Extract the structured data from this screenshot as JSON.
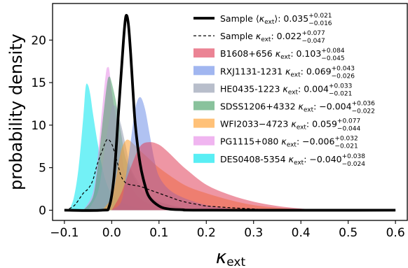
{
  "chart_data": {
    "type": "area",
    "xlabel_main": "κ",
    "xlabel_sub": "ext",
    "ylabel": "probability density",
    "xlim": [
      -0.125,
      0.625
    ],
    "ylim": [
      -1.2,
      24.3
    ],
    "x_ticks": [
      -0.1,
      0.0,
      0.1,
      0.2,
      0.3,
      0.4,
      0.5,
      0.6
    ],
    "x_tick_labels": [
      "−0.1",
      "0.0",
      "0.1",
      "0.2",
      "0.3",
      "0.4",
      "0.5",
      "0.6"
    ],
    "y_ticks": [
      0,
      5,
      10,
      15,
      20
    ],
    "y_tick_labels": [
      "0",
      "5",
      "10",
      "15",
      "20"
    ],
    "grid": false,
    "legend_position": "top-right",
    "series": [
      {
        "name": "DES0408-5354",
        "legend_prefix": "DES0408-5354 ",
        "legend_value": "−0.040",
        "legend_plus": "+0.038",
        "legend_minus": "−0.024",
        "style": "filled",
        "color": "#00e5ee",
        "opacity": 0.55,
        "points": [
          [
            -0.09,
            0
          ],
          [
            -0.08,
            1.5
          ],
          [
            -0.07,
            5
          ],
          [
            -0.06,
            11
          ],
          [
            -0.055,
            14.5
          ],
          [
            -0.05,
            14.7
          ],
          [
            -0.045,
            13.5
          ],
          [
            -0.04,
            11.5
          ],
          [
            -0.03,
            8
          ],
          [
            -0.02,
            5
          ],
          [
            -0.01,
            3
          ],
          [
            0.0,
            2
          ],
          [
            0.02,
            1
          ],
          [
            0.04,
            0.5
          ],
          [
            0.06,
            0.2
          ],
          [
            0.08,
            0
          ]
        ]
      },
      {
        "name": "PG1115+080",
        "legend_prefix": "PG1115+080 ",
        "legend_value": "−0.006",
        "legend_plus": "+0.032",
        "legend_minus": "−0.021",
        "style": "filled",
        "color": "#e88ee8",
        "opacity": 0.55,
        "points": [
          [
            -0.06,
            0
          ],
          [
            -0.04,
            2
          ],
          [
            -0.03,
            6
          ],
          [
            -0.02,
            12
          ],
          [
            -0.012,
            16.2
          ],
          [
            -0.008,
            16.8
          ],
          [
            -0.005,
            16.5
          ],
          [
            0.0,
            14
          ],
          [
            0.01,
            10.5
          ],
          [
            0.02,
            7
          ],
          [
            0.03,
            4
          ],
          [
            0.05,
            2
          ],
          [
            0.07,
            1
          ],
          [
            0.1,
            0.4
          ],
          [
            0.13,
            0.1
          ],
          [
            0.15,
            0
          ]
        ]
      },
      {
        "name": "SDSS1206+4332",
        "legend_prefix": "SDSS1206+4332 ",
        "legend_value": "−0.004",
        "legend_plus": "+0.036",
        "legend_minus": "−0.022",
        "style": "filled",
        "color": "#3a9a5a",
        "opacity": 0.5,
        "points": [
          [
            -0.06,
            0
          ],
          [
            -0.04,
            1.5
          ],
          [
            -0.03,
            5
          ],
          [
            -0.02,
            10
          ],
          [
            -0.01,
            14.8
          ],
          [
            -0.005,
            15.7
          ],
          [
            0.0,
            15
          ],
          [
            0.01,
            12.5
          ],
          [
            0.02,
            9
          ],
          [
            0.03,
            6
          ],
          [
            0.05,
            3.5
          ],
          [
            0.07,
            2
          ],
          [
            0.1,
            1
          ],
          [
            0.14,
            0.4
          ],
          [
            0.18,
            0.1
          ],
          [
            0.2,
            0
          ]
        ]
      },
      {
        "name": "HE0435-1223",
        "legend_prefix": "HE0435-1223 ",
        "legend_value": "0.004",
        "legend_plus": "+0.033",
        "legend_minus": "−0.021",
        "style": "filled",
        "color": "#9aa3b5",
        "opacity": 0.6,
        "points": [
          [
            -0.05,
            0
          ],
          [
            -0.03,
            2
          ],
          [
            -0.02,
            5
          ],
          [
            -0.01,
            9
          ],
          [
            0.0,
            12
          ],
          [
            0.005,
            12.3
          ],
          [
            0.01,
            12
          ],
          [
            0.02,
            10
          ],
          [
            0.03,
            7.5
          ],
          [
            0.04,
            5
          ],
          [
            0.06,
            3
          ],
          [
            0.08,
            1.8
          ],
          [
            0.1,
            1
          ],
          [
            0.14,
            0.4
          ],
          [
            0.18,
            0.1
          ],
          [
            0.2,
            0
          ]
        ]
      },
      {
        "name": "WFI2033−4723",
        "legend_prefix": "WFI2033−4723 ",
        "legend_value": "0.059",
        "legend_plus": "+0.077",
        "legend_minus": "−0.044",
        "style": "filled",
        "color": "#ffa030",
        "opacity": 0.55,
        "points": [
          [
            -0.02,
            0
          ],
          [
            0.0,
            1.5
          ],
          [
            0.01,
            4
          ],
          [
            0.02,
            7
          ],
          [
            0.03,
            8.2
          ],
          [
            0.04,
            8.1
          ],
          [
            0.06,
            7
          ],
          [
            0.08,
            6
          ],
          [
            0.1,
            5
          ],
          [
            0.13,
            3.8
          ],
          [
            0.16,
            2.8
          ],
          [
            0.2,
            2
          ],
          [
            0.25,
            1.2
          ],
          [
            0.3,
            0.6
          ],
          [
            0.35,
            0.3
          ],
          [
            0.4,
            0.1
          ],
          [
            0.45,
            0
          ]
        ]
      },
      {
        "name": "RXJ1131-1231",
        "legend_prefix": "RXJ1131-1231 ",
        "legend_value": "0.069",
        "legend_plus": "+0.043",
        "legend_minus": "−0.026",
        "style": "filled",
        "color": "#6f8fe8",
        "opacity": 0.55,
        "points": [
          [
            0.0,
            0
          ],
          [
            0.02,
            1
          ],
          [
            0.03,
            4
          ],
          [
            0.04,
            8
          ],
          [
            0.05,
            12
          ],
          [
            0.06,
            13.3
          ],
          [
            0.07,
            12
          ],
          [
            0.08,
            9
          ],
          [
            0.09,
            6
          ],
          [
            0.1,
            4
          ],
          [
            0.12,
            2.5
          ],
          [
            0.15,
            1.5
          ],
          [
            0.2,
            0.6
          ],
          [
            0.25,
            0.2
          ],
          [
            0.3,
            0
          ]
        ]
      },
      {
        "name": "B1608+656",
        "legend_prefix": "B1608+656 ",
        "legend_value": "0.103",
        "legend_plus": "+0.084",
        "legend_minus": "−0.045",
        "style": "filled",
        "color": "#e0405a",
        "opacity": 0.55,
        "points": [
          [
            0.0,
            0
          ],
          [
            0.02,
            2
          ],
          [
            0.04,
            5
          ],
          [
            0.06,
            7.5
          ],
          [
            0.08,
            8
          ],
          [
            0.1,
            7.7
          ],
          [
            0.12,
            6.8
          ],
          [
            0.14,
            5.7
          ],
          [
            0.16,
            4.7
          ],
          [
            0.2,
            3
          ],
          [
            0.25,
            1.8
          ],
          [
            0.3,
            1
          ],
          [
            0.35,
            0.5
          ],
          [
            0.4,
            0.2
          ],
          [
            0.45,
            0
          ]
        ]
      },
      {
        "name": "Sample κext (dashed)",
        "legend_prefix": "Sample ",
        "legend_value": "0.022",
        "legend_plus": "+0.077",
        "legend_minus": "−0.047",
        "style": "dashed",
        "color": "#000000",
        "points": [
          [
            -0.1,
            0
          ],
          [
            -0.08,
            0.5
          ],
          [
            -0.06,
            2
          ],
          [
            -0.05,
            2.5
          ],
          [
            -0.04,
            3.5
          ],
          [
            -0.03,
            5.5
          ],
          [
            -0.02,
            7
          ],
          [
            -0.01,
            8.3
          ],
          [
            0.0,
            7.8
          ],
          [
            0.01,
            6
          ],
          [
            0.02,
            4
          ],
          [
            0.03,
            3.2
          ],
          [
            0.04,
            3
          ],
          [
            0.06,
            2.8
          ],
          [
            0.08,
            2.4
          ],
          [
            0.1,
            2
          ],
          [
            0.12,
            1.6
          ],
          [
            0.14,
            1.2
          ],
          [
            0.16,
            0.9
          ],
          [
            0.18,
            0.7
          ],
          [
            0.2,
            0.5
          ],
          [
            0.25,
            0.3
          ],
          [
            0.3,
            0.15
          ],
          [
            0.35,
            0.05
          ],
          [
            0.6,
            0
          ]
        ]
      },
      {
        "name": "Sample ⟨κext⟩ (thick)",
        "legend_prefix": "Sample ",
        "legend_value": "0.035",
        "legend_plus": "+0.021",
        "legend_minus": "−0.016",
        "style": "thick",
        "color": "#000000",
        "points": [
          [
            -0.1,
            0
          ],
          [
            -0.02,
            0
          ],
          [
            -0.005,
            0.5
          ],
          [
            0.005,
            4
          ],
          [
            0.015,
            12
          ],
          [
            0.025,
            20
          ],
          [
            0.03,
            22.8
          ],
          [
            0.035,
            22
          ],
          [
            0.04,
            18.5
          ],
          [
            0.045,
            14
          ],
          [
            0.05,
            10
          ],
          [
            0.06,
            5.5
          ],
          [
            0.07,
            3
          ],
          [
            0.08,
            1.5
          ],
          [
            0.1,
            0.5
          ],
          [
            0.12,
            0.15
          ],
          [
            0.15,
            0.05
          ],
          [
            0.2,
            0
          ],
          [
            0.6,
            0
          ]
        ]
      }
    ]
  }
}
